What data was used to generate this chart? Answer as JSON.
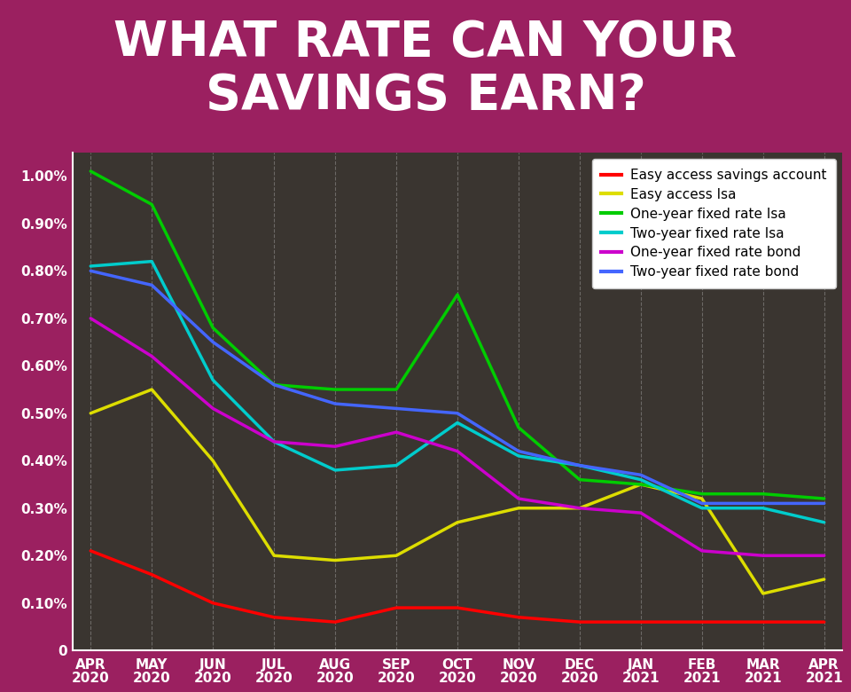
{
  "title": "WHAT RATE CAN YOUR\nSAVINGS EARN?",
  "title_bg_color": "#9B2060",
  "title_text_color": "#FFFFFF",
  "chart_bg_color": "#3a3530",
  "labels": [
    "APR\n2020",
    "MAY\n2020",
    "JUN\n2020",
    "JUL\n2020",
    "AUG\n2020",
    "SEP\n2020",
    "OCT\n2020",
    "NOV\n2020",
    "DEC\n2020",
    "JAN\n2021",
    "FEB\n2021",
    "MAR\n2021",
    "APR\n2021"
  ],
  "series": [
    {
      "name": "Easy access savings account",
      "color": "#FF0000",
      "values": [
        0.21,
        0.16,
        0.1,
        0.07,
        0.06,
        0.09,
        0.09,
        0.07,
        0.06,
        0.06,
        0.06,
        0.06,
        0.06
      ]
    },
    {
      "name": "Easy access Isa",
      "color": "#DDDD00",
      "values": [
        0.5,
        0.55,
        0.4,
        0.2,
        0.19,
        0.2,
        0.27,
        0.3,
        0.3,
        0.35,
        0.32,
        0.12,
        0.15
      ]
    },
    {
      "name": "One-year fixed rate Isa",
      "color": "#00CC00",
      "values": [
        1.01,
        0.94,
        0.68,
        0.56,
        0.55,
        0.55,
        0.75,
        0.47,
        0.36,
        0.35,
        0.33,
        0.33,
        0.32
      ]
    },
    {
      "name": "Two-year fixed rate Isa",
      "color": "#00CCCC",
      "values": [
        0.81,
        0.82,
        0.57,
        0.44,
        0.38,
        0.39,
        0.48,
        0.41,
        0.39,
        0.36,
        0.3,
        0.3,
        0.27
      ]
    },
    {
      "name": "One-year fixed rate bond",
      "color": "#CC00CC",
      "values": [
        0.7,
        0.62,
        0.51,
        0.44,
        0.43,
        0.46,
        0.42,
        0.32,
        0.3,
        0.29,
        0.21,
        0.2,
        0.2
      ]
    },
    {
      "name": "Two-year fixed rate bond",
      "color": "#4466FF",
      "values": [
        0.8,
        0.77,
        0.65,
        0.56,
        0.52,
        0.51,
        0.5,
        0.42,
        0.39,
        0.37,
        0.31,
        0.31,
        0.31
      ]
    }
  ],
  "ylim_max": 1.05,
  "ytick_vals": [
    0.0,
    0.1,
    0.2,
    0.3,
    0.4,
    0.5,
    0.6,
    0.7,
    0.8,
    0.9,
    1.0
  ],
  "ytick_labels": [
    "0",
    "0.10%",
    "0.20%",
    "0.30%",
    "0.40%",
    "0.50%",
    "0.60%",
    "0.70%",
    "0.80%",
    "0.90%",
    "1.00%"
  ],
  "grid_color": "#AAAAAA",
  "axis_text_color": "#FFFFFF",
  "legend_bg": "#FFFFFF",
  "linewidth": 2.5
}
